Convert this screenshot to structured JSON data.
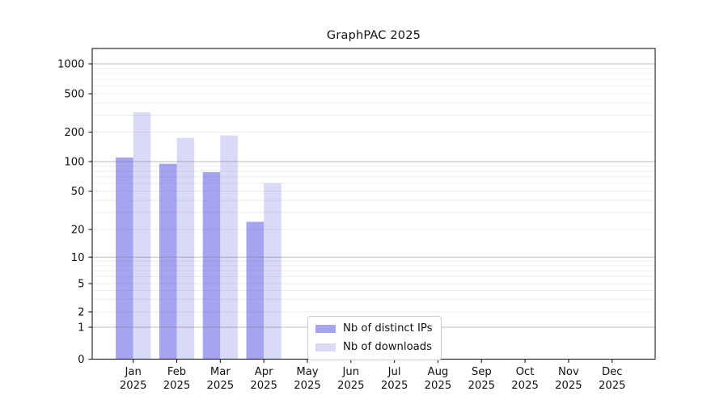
{
  "chart_data": {
    "type": "bar",
    "title": "GraphPAC 2025",
    "months": [
      "Jan",
      "Feb",
      "Mar",
      "Apr",
      "May",
      "Jun",
      "Jul",
      "Aug",
      "Sep",
      "Oct",
      "Nov",
      "Dec"
    ],
    "year": "2025",
    "series": [
      {
        "name": "Nb of distinct IPs",
        "color": "#a4a4f1",
        "values": [
          110,
          95,
          78,
          24,
          0,
          0,
          0,
          0,
          0,
          0,
          0,
          0
        ]
      },
      {
        "name": "Nb of downloads",
        "color": "#d9d9f8",
        "values": [
          320,
          175,
          185,
          60,
          0,
          0,
          0,
          0,
          0,
          0,
          0,
          0
        ]
      }
    ],
    "y_axis": {
      "scale": "log-like with zero baseline",
      "tick_values": [
        0,
        1,
        2,
        5,
        10,
        20,
        50,
        100,
        200,
        500,
        1000
      ],
      "tick_labels": [
        "0",
        "1",
        "2",
        "5",
        "10",
        "20",
        "50",
        "100",
        "200",
        "500",
        "1000"
      ],
      "range": [
        0,
        1000
      ]
    },
    "grid": "horizontal major (decades, medium gray) + minor (light gray), drawn over bars",
    "legend_position": "bottom, left-of-center inside plot"
  },
  "colors": {
    "bar_distinct_ips": "#a4a4f1",
    "bar_downloads": "#d9d9f8",
    "axis_frame": "#1a1a1a",
    "tick_text": "#111111",
    "grid_major": "#b3b3b3",
    "grid_minor": "#ebebeb",
    "legend_border": "#cccccc",
    "background": "#ffffff"
  }
}
